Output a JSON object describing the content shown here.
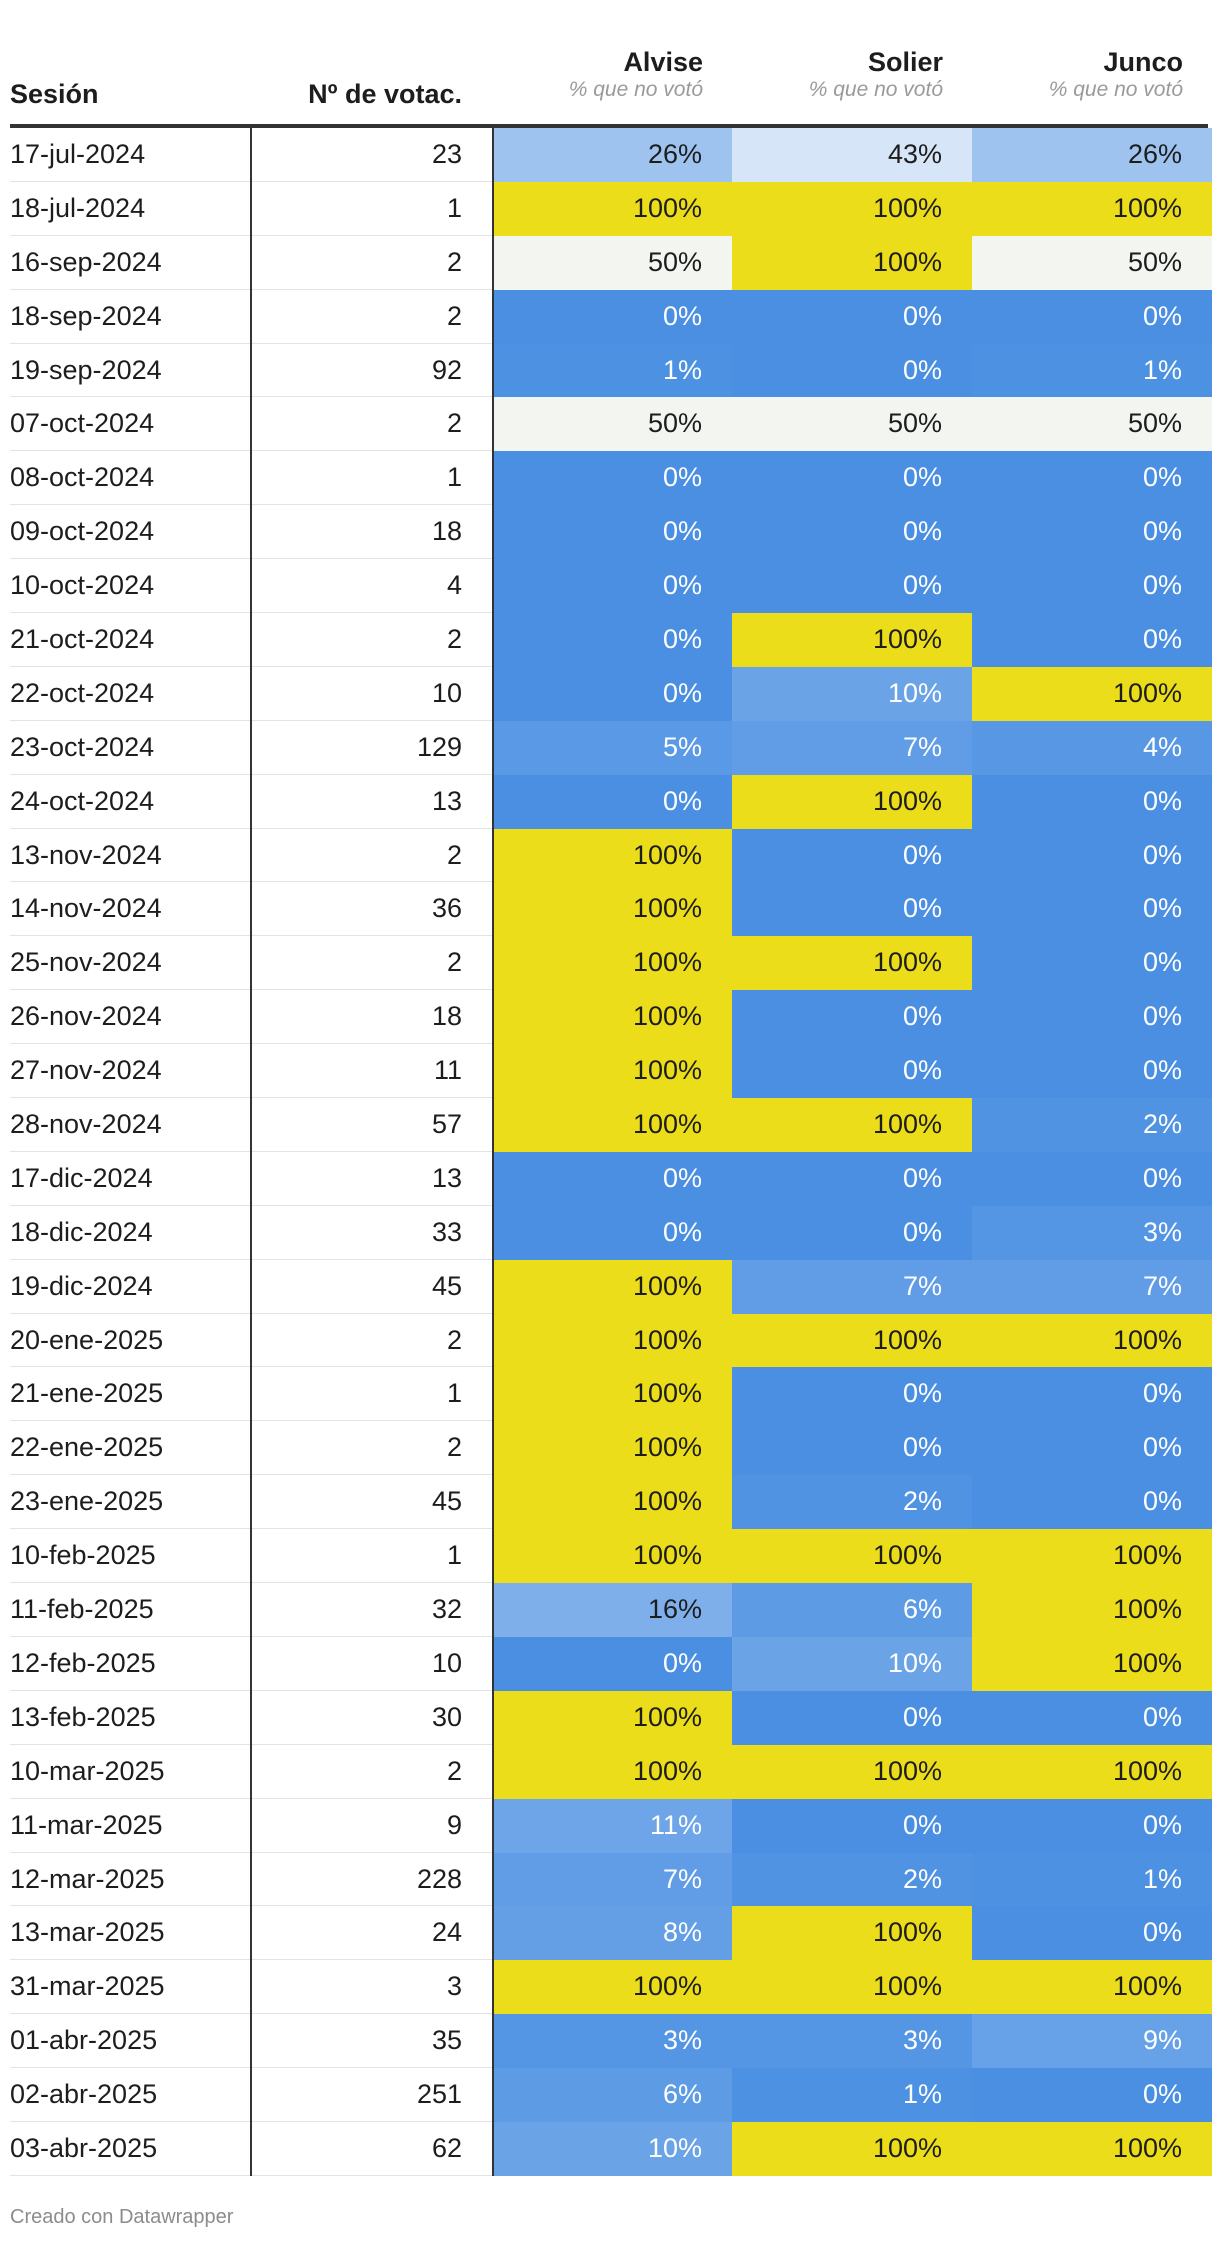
{
  "table": {
    "headers": {
      "session": "Sesión",
      "votes": "Nº de votac.",
      "meps": [
        {
          "name": "Alvise",
          "sub": "% que no votó"
        },
        {
          "name": "Solier",
          "sub": "% que no votó"
        },
        {
          "name": "Junco",
          "sub": "% que no votó"
        }
      ]
    },
    "rows": [
      {
        "date": "17-jul-2024",
        "n": "23",
        "vals": [
          "26%",
          "43%",
          "26%"
        ]
      },
      {
        "date": "18-jul-2024",
        "n": "1",
        "vals": [
          "100%",
          "100%",
          "100%"
        ]
      },
      {
        "date": "16-sep-2024",
        "n": "2",
        "vals": [
          "50%",
          "100%",
          "50%"
        ]
      },
      {
        "date": "18-sep-2024",
        "n": "2",
        "vals": [
          "0%",
          "0%",
          "0%"
        ]
      },
      {
        "date": "19-sep-2024",
        "n": "92",
        "vals": [
          "1%",
          "0%",
          "1%"
        ]
      },
      {
        "date": "07-oct-2024",
        "n": "2",
        "vals": [
          "50%",
          "50%",
          "50%"
        ]
      },
      {
        "date": "08-oct-2024",
        "n": "1",
        "vals": [
          "0%",
          "0%",
          "0%"
        ]
      },
      {
        "date": "09-oct-2024",
        "n": "18",
        "vals": [
          "0%",
          "0%",
          "0%"
        ]
      },
      {
        "date": "10-oct-2024",
        "n": "4",
        "vals": [
          "0%",
          "0%",
          "0%"
        ]
      },
      {
        "date": "21-oct-2024",
        "n": "2",
        "vals": [
          "0%",
          "100%",
          "0%"
        ]
      },
      {
        "date": "22-oct-2024",
        "n": "10",
        "vals": [
          "0%",
          "10%",
          "100%"
        ]
      },
      {
        "date": "23-oct-2024",
        "n": "129",
        "vals": [
          "5%",
          "7%",
          "4%"
        ]
      },
      {
        "date": "24-oct-2024",
        "n": "13",
        "vals": [
          "0%",
          "100%",
          "0%"
        ]
      },
      {
        "date": "13-nov-2024",
        "n": "2",
        "vals": [
          "100%",
          "0%",
          "0%"
        ]
      },
      {
        "date": "14-nov-2024",
        "n": "36",
        "vals": [
          "100%",
          "0%",
          "0%"
        ]
      },
      {
        "date": "25-nov-2024",
        "n": "2",
        "vals": [
          "100%",
          "100%",
          "0%"
        ]
      },
      {
        "date": "26-nov-2024",
        "n": "18",
        "vals": [
          "100%",
          "0%",
          "0%"
        ]
      },
      {
        "date": "27-nov-2024",
        "n": "11",
        "vals": [
          "100%",
          "0%",
          "0%"
        ]
      },
      {
        "date": "28-nov-2024",
        "n": "57",
        "vals": [
          "100%",
          "100%",
          "2%"
        ]
      },
      {
        "date": "17-dic-2024",
        "n": "13",
        "vals": [
          "0%",
          "0%",
          "0%"
        ]
      },
      {
        "date": "18-dic-2024",
        "n": "33",
        "vals": [
          "0%",
          "0%",
          "3%"
        ]
      },
      {
        "date": "19-dic-2024",
        "n": "45",
        "vals": [
          "100%",
          "7%",
          "7%"
        ]
      },
      {
        "date": "20-ene-2025",
        "n": "2",
        "vals": [
          "100%",
          "100%",
          "100%"
        ]
      },
      {
        "date": "21-ene-2025",
        "n": "1",
        "vals": [
          "100%",
          "0%",
          "0%"
        ]
      },
      {
        "date": "22-ene-2025",
        "n": "2",
        "vals": [
          "100%",
          "0%",
          "0%"
        ]
      },
      {
        "date": "23-ene-2025",
        "n": "45",
        "vals": [
          "100%",
          "2%",
          "0%"
        ]
      },
      {
        "date": "10-feb-2025",
        "n": "1",
        "vals": [
          "100%",
          "100%",
          "100%"
        ]
      },
      {
        "date": "11-feb-2025",
        "n": "32",
        "vals": [
          "16%",
          "6%",
          "100%"
        ]
      },
      {
        "date": "12-feb-2025",
        "n": "10",
        "vals": [
          "0%",
          "10%",
          "100%"
        ]
      },
      {
        "date": "13-feb-2025",
        "n": "30",
        "vals": [
          "100%",
          "0%",
          "0%"
        ]
      },
      {
        "date": "10-mar-2025",
        "n": "2",
        "vals": [
          "100%",
          "100%",
          "100%"
        ]
      },
      {
        "date": "11-mar-2025",
        "n": "9",
        "vals": [
          "11%",
          "0%",
          "0%"
        ]
      },
      {
        "date": "12-mar-2025",
        "n": "228",
        "vals": [
          "7%",
          "2%",
          "1%"
        ]
      },
      {
        "date": "13-mar-2025",
        "n": "24",
        "vals": [
          "8%",
          "100%",
          "0%"
        ]
      },
      {
        "date": "31-mar-2025",
        "n": "3",
        "vals": [
          "100%",
          "100%",
          "100%"
        ]
      },
      {
        "date": "01-abr-2025",
        "n": "35",
        "vals": [
          "3%",
          "3%",
          "9%"
        ]
      },
      {
        "date": "02-abr-2025",
        "n": "251",
        "vals": [
          "6%",
          "1%",
          "0%"
        ]
      },
      {
        "date": "03-abr-2025",
        "n": "62",
        "vals": [
          "10%",
          "100%",
          "100%"
        ]
      }
    ]
  },
  "colors": {
    "yellow_100": "#ebdd1a",
    "neutral_50": "#f3f5f1",
    "blue_0": "#4a8fe2",
    "blue_light": "#dde9f9",
    "rule": "#333333",
    "row_rule": "#e3e3e3",
    "footer_text": "#8c8c8c"
  },
  "footer": "Creado con Datawrapper"
}
